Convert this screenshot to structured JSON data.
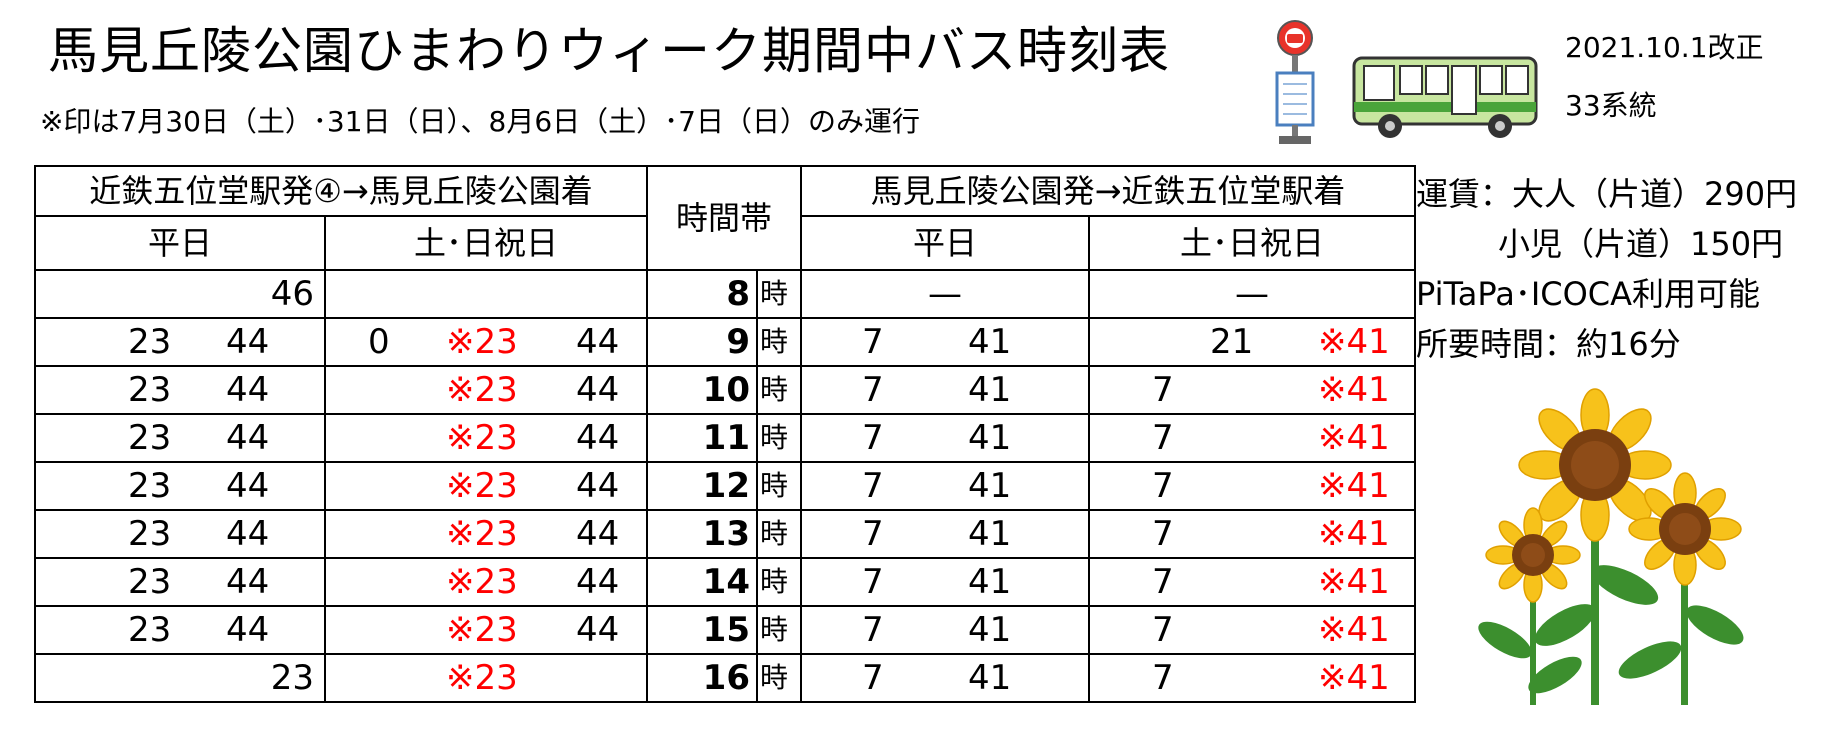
{
  "header": {
    "title": "馬見丘陵公園ひまわりウィーク期間中バス時刻表",
    "note": "※印は7月30日（土）･31日（日）、8月6日（土）･7日（日）のみ運行",
    "revision": "2021.10.1改正",
    "route": "33系統"
  },
  "table": {
    "outbound_title": "近鉄五位堂駅発④→馬見丘陵公園着",
    "time_band_label": "時間帯",
    "inbound_title": "馬見丘陵公園発→近鉄五位堂駅着",
    "weekday_label": "平日",
    "holiday_label": "土･日祝日",
    "hour_unit": "時",
    "marker_mark": "※",
    "rows": [
      {
        "hour": "8",
        "out_wd": [
          "46"
        ],
        "out_hol": [],
        "in_wd": [
          "—"
        ],
        "in_hol": [
          "—"
        ]
      },
      {
        "hour": "9",
        "out_wd": [
          "23",
          "44"
        ],
        "out_hol": [
          "0",
          "※23",
          "44"
        ],
        "in_wd": [
          "7",
          "41"
        ],
        "in_hol": [
          "21",
          "※41"
        ]
      },
      {
        "hour": "10",
        "out_wd": [
          "23",
          "44"
        ],
        "out_hol": [
          "※23",
          "44"
        ],
        "in_wd": [
          "7",
          "41"
        ],
        "in_hol": [
          "7",
          "※41"
        ]
      },
      {
        "hour": "11",
        "out_wd": [
          "23",
          "44"
        ],
        "out_hol": [
          "※23",
          "44"
        ],
        "in_wd": [
          "7",
          "41"
        ],
        "in_hol": [
          "7",
          "※41"
        ]
      },
      {
        "hour": "12",
        "out_wd": [
          "23",
          "44"
        ],
        "out_hol": [
          "※23",
          "44"
        ],
        "in_wd": [
          "7",
          "41"
        ],
        "in_hol": [
          "7",
          "※41"
        ]
      },
      {
        "hour": "13",
        "out_wd": [
          "23",
          "44"
        ],
        "out_hol": [
          "※23",
          "44"
        ],
        "in_wd": [
          "7",
          "41"
        ],
        "in_hol": [
          "7",
          "※41"
        ]
      },
      {
        "hour": "14",
        "out_wd": [
          "23",
          "44"
        ],
        "out_hol": [
          "※23",
          "44"
        ],
        "in_wd": [
          "7",
          "41"
        ],
        "in_hol": [
          "7",
          "※41"
        ]
      },
      {
        "hour": "15",
        "out_wd": [
          "23",
          "44"
        ],
        "out_hol": [
          "※23",
          "44"
        ],
        "in_wd": [
          "7",
          "41"
        ],
        "in_hol": [
          "7",
          "※41"
        ]
      },
      {
        "hour": "16",
        "out_wd": [
          "23"
        ],
        "out_hol": [
          "※23"
        ],
        "in_wd": [
          "7",
          "41"
        ],
        "in_hol": [
          "7",
          "※41"
        ]
      }
    ]
  },
  "info": {
    "fare_adult": "運賃：大人（片道）290円",
    "fare_child": "小児（片道）150円",
    "ic_cards": "PiTaPa･ICOCA利用可能",
    "duration": "所要時間：約16分"
  },
  "icons": {
    "bus_stop": "bus-stop-sign-icon",
    "bus": "bus-icon",
    "decoration": "sunflowers-illustration"
  },
  "colors": {
    "marked_departure": "#ff0000",
    "bus_body": "#c8e6a0",
    "bus_stop_red": "#e8332a",
    "sunflower_petal": "#f7c21b",
    "sunflower_center": "#7a3f10",
    "leaf": "#3c8f2e"
  }
}
